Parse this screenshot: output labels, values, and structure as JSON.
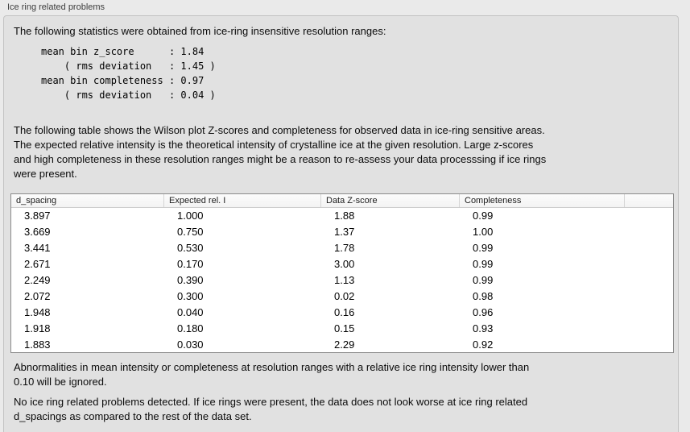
{
  "panel": {
    "title": "Ice ring related problems"
  },
  "intro": "The following statistics were obtained from ice-ring insensitive resolution ranges:",
  "stats_block": "mean bin z_score      : 1.84\n    ( rms deviation   : 1.45 )\nmean bin completeness : 0.97\n    ( rms deviation   : 0.04 )",
  "description": "The following table shows the Wilson plot Z-scores and completeness for observed data in ice-ring sensitive areas.\nThe expected relative intensity is the theoretical intensity of crystalline ice at the given resolution. Large z-scores\nand high completeness in these resolution ranges might be a reason to re-assess your data processsing if ice rings\nwere present.",
  "table": {
    "columns": [
      "d_spacing",
      "Expected rel. I",
      "Data Z-score",
      "Completeness"
    ],
    "rows": [
      [
        "3.897",
        "1.000",
        "1.88",
        "0.99"
      ],
      [
        "3.669",
        "0.750",
        "1.37",
        "1.00"
      ],
      [
        "3.441",
        "0.530",
        "1.78",
        "0.99"
      ],
      [
        "2.671",
        "0.170",
        "3.00",
        "0.99"
      ],
      [
        "2.249",
        "0.390",
        "1.13",
        "0.99"
      ],
      [
        "2.072",
        "0.300",
        "0.02",
        "0.98"
      ],
      [
        "1.948",
        "0.040",
        "0.16",
        "0.96"
      ],
      [
        "1.918",
        "0.180",
        "0.15",
        "0.93"
      ],
      [
        "1.883",
        "0.030",
        "2.29",
        "0.92"
      ]
    ]
  },
  "note_ignore": "Abnormalities in mean intensity or completeness at resolution ranges with a relative ice ring intensity lower than\n0.10 will be ignored.",
  "conclusion": "No ice ring related problems detected. If ice rings were present, the data does not look worse at ice ring related\nd_spacings as compared to the rest of the data set."
}
